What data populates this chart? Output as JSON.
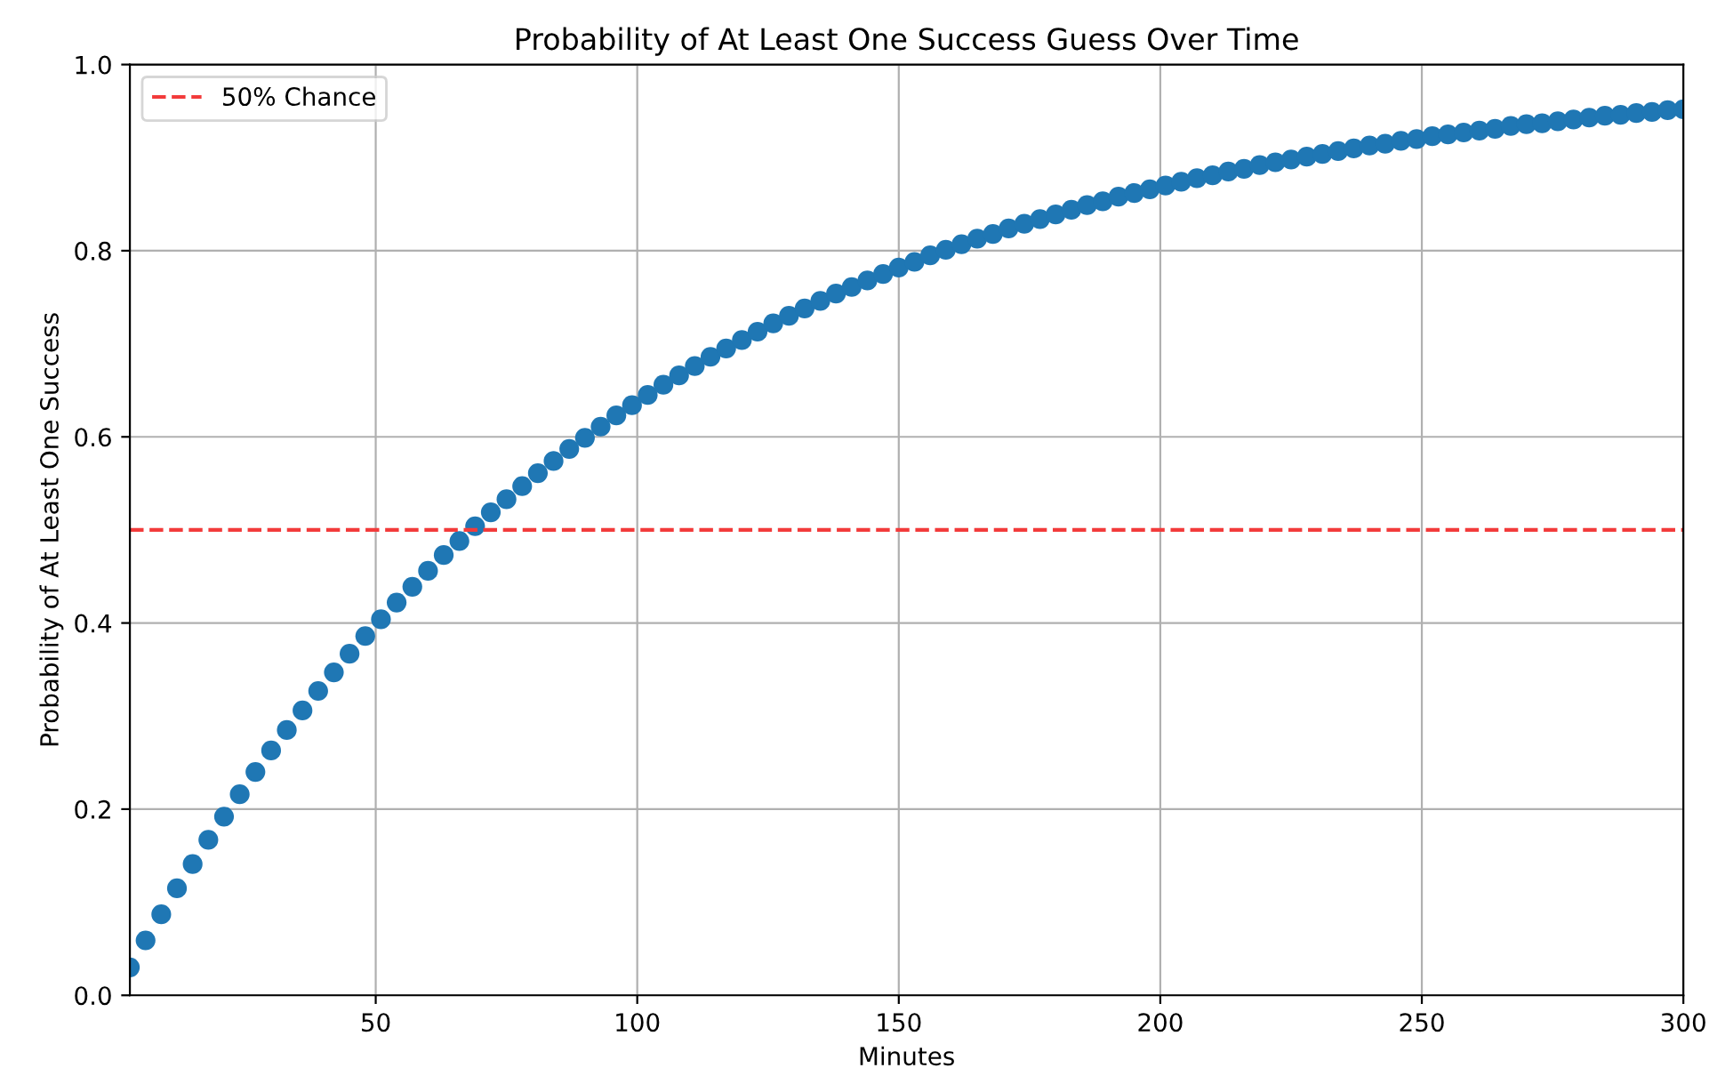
{
  "chart_data": {
    "type": "scatter",
    "title": "Probability of At Least One Success Guess Over Time",
    "xlabel": "Minutes",
    "ylabel": "Probability of At Least One Success",
    "x": [
      3,
      6,
      9,
      12,
      15,
      18,
      21,
      24,
      27,
      30,
      33,
      36,
      39,
      42,
      45,
      48,
      51,
      54,
      57,
      60,
      63,
      66,
      69,
      72,
      75,
      78,
      81,
      84,
      87,
      90,
      93,
      96,
      99,
      102,
      105,
      108,
      111,
      114,
      117,
      120,
      123,
      126,
      129,
      132,
      135,
      138,
      141,
      144,
      147,
      150,
      153,
      156,
      159,
      162,
      165,
      168,
      171,
      174,
      177,
      180,
      183,
      186,
      189,
      192,
      195,
      198,
      201,
      204,
      207,
      210,
      213,
      216,
      219,
      222,
      225,
      228,
      231,
      234,
      237,
      240,
      243,
      246,
      249,
      252,
      255,
      258,
      261,
      264,
      267,
      270,
      273,
      276,
      279,
      282,
      285,
      288,
      291,
      294,
      297,
      300
    ],
    "series": [
      {
        "color": "#1f77b4",
        "values": [
          0.03,
          0.059,
          0.087,
          0.115,
          0.141,
          0.167,
          0.192,
          0.216,
          0.24,
          0.263,
          0.285,
          0.306,
          0.327,
          0.347,
          0.367,
          0.386,
          0.404,
          0.422,
          0.439,
          0.456,
          0.473,
          0.488,
          0.504,
          0.519,
          0.533,
          0.547,
          0.561,
          0.574,
          0.587,
          0.599,
          0.611,
          0.623,
          0.634,
          0.645,
          0.656,
          0.666,
          0.676,
          0.686,
          0.695,
          0.704,
          0.713,
          0.722,
          0.73,
          0.738,
          0.746,
          0.754,
          0.761,
          0.768,
          0.775,
          0.782,
          0.788,
          0.795,
          0.801,
          0.807,
          0.813,
          0.818,
          0.824,
          0.829,
          0.834,
          0.839,
          0.844,
          0.849,
          0.853,
          0.858,
          0.862,
          0.866,
          0.87,
          0.874,
          0.878,
          0.881,
          0.885,
          0.888,
          0.892,
          0.895,
          0.898,
          0.901,
          0.904,
          0.907,
          0.91,
          0.913,
          0.915,
          0.918,
          0.92,
          0.923,
          0.925,
          0.927,
          0.929,
          0.931,
          0.934,
          0.936,
          0.937,
          0.939,
          0.941,
          0.943,
          0.945,
          0.946,
          0.948,
          0.949,
          0.951,
          0.952
        ]
      }
    ],
    "xlim": [
      3,
      300
    ],
    "xticks": [
      50,
      100,
      150,
      200,
      250,
      300
    ],
    "ylim": [
      0,
      1
    ],
    "yticks": [
      {
        "value": 0,
        "label": "0.0"
      },
      {
        "value": 0.2,
        "label": "0.2"
      },
      {
        "value": 0.4,
        "label": "0.4"
      },
      {
        "value": 0.6,
        "label": "0.6"
      },
      {
        "value": 0.8,
        "label": "0.8"
      },
      {
        "value": 1,
        "label": "1.0"
      }
    ],
    "ref_lines": [
      {
        "axis": "y",
        "value": 0.5,
        "label": "50% Chance",
        "color": "#f23b3b",
        "line_style": "dashed"
      }
    ],
    "grid": true,
    "legend": "top left",
    "marker": "circle"
  }
}
